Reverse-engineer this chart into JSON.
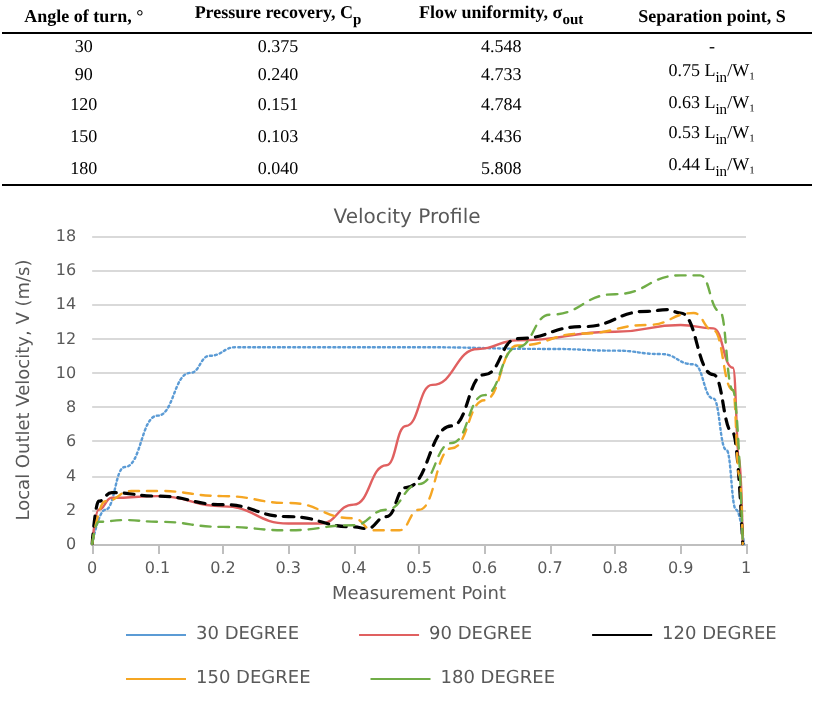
{
  "chart_data": {
    "type": "line",
    "title": "Velocity Profile",
    "xlabel": "Measurement Point",
    "ylabel": "Local Outlet Velocity, V (m/s)",
    "annotations": [
      "Angle of turn, °",
      "Pressure recovery, C$_{p}$",
      "Flow uniformity, σ$_{out}$",
      "Separation point, S",
      "30",
      "0.375",
      "4.548",
      "-",
      "90",
      "0.240",
      "4.733",
      "0.75 L$_{in}$/W₁",
      "120",
      "0.151",
      "4.784",
      "0.63 L$_{in}$/W₁",
      "150",
      "0.103",
      "4.436",
      "0.53 L$_{in}$/W₁",
      "180",
      "0.040",
      "5.808",
      "0.44 L$_{in}$/W₁"
    ],
    "xlim": [
      0,
      1
    ],
    "xticks": [
      0,
      0.1,
      0.2,
      0.3,
      0.4,
      0.5,
      0.6,
      0.7,
      0.8,
      0.9,
      1
    ],
    "ylim": [
      0,
      18
    ],
    "yticks": [
      0,
      2,
      4,
      6,
      8,
      10,
      12,
      14,
      16,
      18
    ],
    "grid": "y",
    "legend": "bottom",
    "marker": "none",
    "series": [
      {
        "name": "30 DEGREE",
        "color": "#5b9bd5",
        "line_style": "dotted",
        "x": [
          0,
          0.02,
          0.05,
          0.1,
          0.15,
          0.18,
          0.22,
          0.3,
          0.5,
          0.7,
          0.8,
          0.87,
          0.92,
          0.95,
          0.97,
          0.985,
          0.997
        ],
        "values": [
          0,
          2,
          4.5,
          7.5,
          10,
          11,
          11.5,
          11.5,
          11.5,
          11.4,
          11.3,
          11.1,
          10.5,
          8.5,
          5.5,
          2,
          0
        ]
      },
      {
        "name": "90 DEGREE",
        "color": "#e06060",
        "line_style": "solid",
        "x": [
          0,
          0.01,
          0.03,
          0.1,
          0.2,
          0.3,
          0.35,
          0.4,
          0.45,
          0.48,
          0.52,
          0.59,
          0.65,
          0.8,
          0.9,
          0.95,
          0.98,
          0.99,
          0.995
        ],
        "values": [
          0,
          2,
          2.7,
          2.8,
          2.2,
          1.2,
          1.2,
          2.3,
          4.6,
          6.9,
          9.3,
          11.4,
          11.9,
          12.4,
          12.8,
          12.6,
          10.3,
          5,
          0
        ]
      },
      {
        "name": "120 DEGREE",
        "color": "#000000",
        "line_style": "dashed",
        "x": [
          0,
          0.01,
          0.03,
          0.1,
          0.2,
          0.3,
          0.4,
          0.42,
          0.45,
          0.48,
          0.55,
          0.6,
          0.65,
          0.75,
          0.85,
          0.88,
          0.9,
          0.95,
          0.98,
          0.995
        ],
        "values": [
          0,
          2.5,
          3,
          2.8,
          2.3,
          1.6,
          1,
          0.9,
          1.6,
          3.3,
          6.9,
          9.9,
          12,
          12.7,
          13.6,
          13.7,
          13.5,
          9.9,
          6.5,
          0
        ]
      },
      {
        "name": "150 DEGREE",
        "color": "#f5a623",
        "line_style": "dashed",
        "x": [
          0,
          0.02,
          0.06,
          0.1,
          0.2,
          0.3,
          0.4,
          0.43,
          0.47,
          0.5,
          0.55,
          0.6,
          0.65,
          0.75,
          0.85,
          0.92,
          0.95,
          0.98,
          0.99,
          0.995
        ],
        "values": [
          0,
          2.5,
          3.1,
          3.1,
          2.8,
          2.4,
          1.5,
          0.8,
          0.8,
          2,
          5.6,
          8.4,
          11.6,
          12.3,
          12.8,
          13.5,
          12.5,
          9,
          4,
          0
        ]
      },
      {
        "name": "180 DEGREE",
        "color": "#70ad47",
        "line_style": "dashed",
        "x": [
          0,
          0.01,
          0.05,
          0.1,
          0.2,
          0.3,
          0.4,
          0.45,
          0.5,
          0.55,
          0.6,
          0.65,
          0.7,
          0.8,
          0.9,
          0.93,
          0.96,
          0.98,
          0.995
        ],
        "values": [
          0,
          1.3,
          1.4,
          1.3,
          1,
          0.8,
          1.1,
          2,
          3.5,
          5.9,
          8.7,
          11.5,
          13.4,
          14.6,
          15.7,
          15.7,
          13.6,
          9,
          0
        ]
      }
    ]
  }
}
